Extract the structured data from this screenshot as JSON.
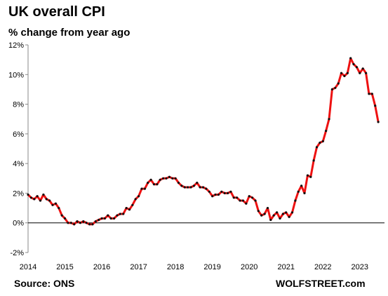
{
  "chart_data": {
    "type": "line",
    "title": "UK overall CPI",
    "subtitle": "% change from year ago",
    "ylabel": "% change from year ago",
    "xlabel": "",
    "ylim": [
      -2,
      12
    ],
    "xlim": [
      2014.0,
      2023.67
    ],
    "grid": false,
    "legend": "none",
    "line_color": "#ee1111",
    "marker_color": "#111111",
    "y_ticks": [
      "-2%",
      "0%",
      "2%",
      "4%",
      "6%",
      "8%",
      "10%",
      "12%"
    ],
    "y_tick_values": [
      -2,
      0,
      2,
      4,
      6,
      8,
      10,
      12
    ],
    "x_ticks": [
      "2014",
      "2015",
      "2016",
      "2017",
      "2018",
      "2019",
      "2020",
      "2021",
      "2022",
      "2023"
    ],
    "x_tick_values": [
      2014,
      2015,
      2016,
      2017,
      2018,
      2019,
      2020,
      2021,
      2022,
      2023
    ],
    "series": [
      {
        "x_start": "2014-01",
        "frequency": "monthly",
        "values": [
          1.9,
          1.7,
          1.6,
          1.8,
          1.5,
          1.9,
          1.6,
          1.5,
          1.2,
          1.3,
          1.0,
          0.5,
          0.3,
          0.0,
          0.0,
          -0.1,
          0.1,
          0.0,
          0.1,
          0.0,
          -0.1,
          -0.1,
          0.1,
          0.2,
          0.3,
          0.3,
          0.5,
          0.3,
          0.3,
          0.5,
          0.6,
          0.6,
          1.0,
          0.9,
          1.2,
          1.6,
          1.8,
          2.3,
          2.3,
          2.7,
          2.9,
          2.6,
          2.6,
          2.9,
          3.0,
          3.0,
          3.1,
          3.0,
          3.0,
          2.7,
          2.5,
          2.4,
          2.4,
          2.4,
          2.5,
          2.7,
          2.4,
          2.4,
          2.3,
          2.1,
          1.8,
          1.9,
          1.9,
          2.1,
          2.0,
          2.0,
          2.1,
          1.7,
          1.7,
          1.5,
          1.5,
          1.3,
          1.8,
          1.7,
          1.5,
          0.8,
          0.5,
          0.6,
          1.0,
          0.2,
          0.5,
          0.7,
          0.3,
          0.6,
          0.7,
          0.4,
          0.7,
          1.5,
          2.1,
          2.5,
          2.0,
          3.2,
          3.1,
          4.2,
          5.1,
          5.4,
          5.5,
          6.2,
          7.0,
          9.0,
          9.1,
          9.4,
          10.1,
          9.9,
          10.1,
          11.1,
          10.7,
          10.5,
          10.1,
          10.4,
          10.1,
          8.7,
          8.7,
          7.9,
          6.8
        ]
      }
    ]
  },
  "footer": {
    "source": "Source: ONS",
    "brand": "WOLFSTREET.com"
  }
}
